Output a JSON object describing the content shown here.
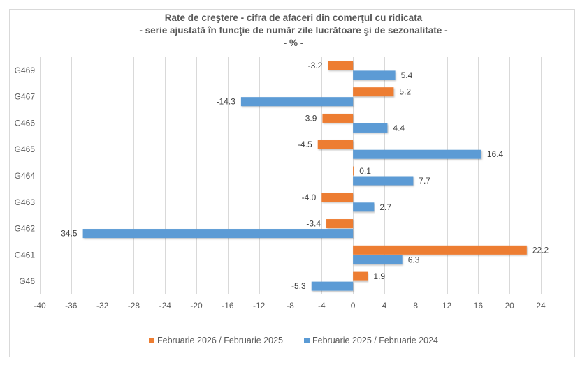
{
  "chart_data": {
    "type": "bar",
    "orientation": "horizontal",
    "title": "Rate de creştere - cifra de afaceri din comerţul cu ridicata",
    "subtitle": "- serie ajustată în funcţie de număr zile lucrătoare şi de sezonalitate -",
    "unit_line": "- % -",
    "xlabel": "",
    "ylabel": "",
    "xlim": [
      -40,
      24
    ],
    "x_ticks": [
      -40,
      -36,
      -32,
      -28,
      -24,
      -20,
      -16,
      -12,
      -8,
      -4,
      0,
      4,
      8,
      12,
      16,
      20,
      24
    ],
    "grid": true,
    "legend_position": "bottom",
    "categories": [
      "G469",
      "G467",
      "G466",
      "G465",
      "G464",
      "G463",
      "G462",
      "G461",
      "G46"
    ],
    "series": [
      {
        "name": "Februarie 2026 / Februarie 2025",
        "color": "#ED7D31",
        "values": [
          -3.2,
          5.2,
          -3.9,
          -4.5,
          0.1,
          -4.0,
          -3.4,
          22.2,
          1.9
        ]
      },
      {
        "name": "Februarie 2025 / Februarie 2024",
        "color": "#5B9BD5",
        "values": [
          5.4,
          -14.3,
          4.4,
          16.4,
          7.7,
          2.7,
          -34.5,
          6.3,
          -5.3
        ]
      }
    ]
  }
}
